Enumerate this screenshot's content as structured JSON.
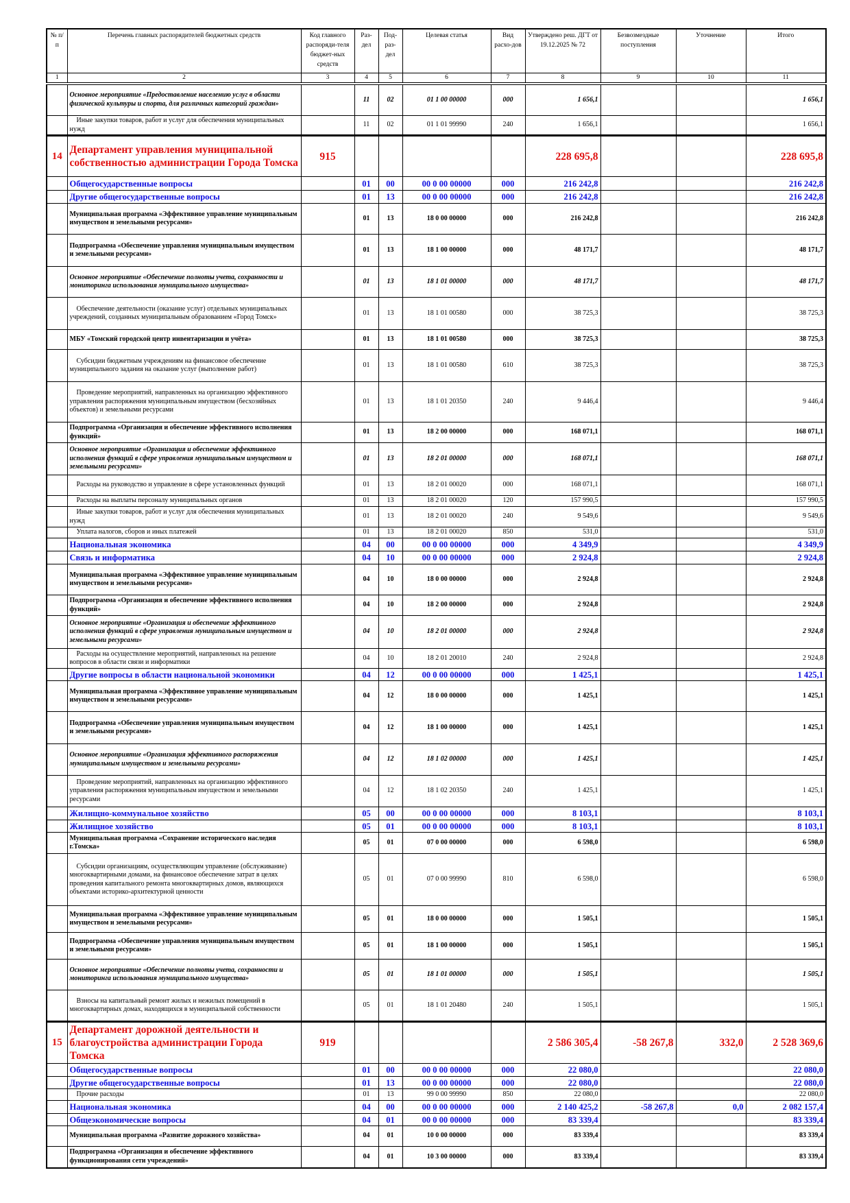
{
  "colors": {
    "department": "#e01010",
    "section": "#1010e0",
    "text": "#000000"
  },
  "header": {
    "num": "№ п/п",
    "name": "Перечень главных распорядителей бюджетных средств",
    "code": "Код главного распоряди-теля бюджет-ных средств",
    "rz": "Раз-дел",
    "prz": "Под-раз-дел",
    "cs": "Целевая статья",
    "vr": "Вид расхо-дов",
    "approved": "Утверждено реш. ДГТ от 19.12.2025 № 72",
    "free": "Безвозмездные поступления",
    "clarif": "Уточнение",
    "total": "Итого"
  },
  "column_numbers": [
    "1",
    "2",
    "3",
    "4",
    "5",
    "6",
    "7",
    "8",
    "9",
    "10",
    "11"
  ],
  "rows": [
    {
      "style": "om",
      "num": "",
      "name": "Основное мероприятие  «Предоставление населению услуг в области физической культуры и спорта, для различных категорий граждан»",
      "code": "",
      "rz": "11",
      "prz": "02",
      "cs": "01 1 00 00000",
      "vr": "000",
      "approved": "1 656,1",
      "free": "",
      "clarif": "",
      "total": "1 656,1"
    },
    {
      "style": "plain",
      "num": "",
      "name": "Иные закупки товаров, работ и услуг для обеспечения муниципальных нужд",
      "code": "",
      "rz": "11",
      "prz": "02",
      "cs": "01 1 01 99990",
      "vr": "240",
      "approved": "1 656,1",
      "free": "",
      "clarif": "",
      "total": "1 656,1"
    },
    {
      "style": "dept",
      "num": "14",
      "name": "Департамент управления муниципальной собственностью администрации Города Томска",
      "code": "915",
      "rz": "",
      "prz": "",
      "cs": "",
      "vr": "",
      "approved": "228 695,8",
      "free": "",
      "clarif": "",
      "total": "228 695,8"
    },
    {
      "style": "sec",
      "num": "",
      "name": "Общегосударственные вопросы",
      "code": "",
      "rz": "01",
      "prz": "00",
      "cs": "00 0 00 00000",
      "vr": "000",
      "approved": "216 242,8",
      "free": "",
      "clarif": "",
      "total": "216 242,8"
    },
    {
      "style": "sec",
      "num": "",
      "name": "Другие общегосударственные вопросы",
      "code": "",
      "rz": "01",
      "prz": "13",
      "cs": "00 0 00 00000",
      "vr": "000",
      "approved": "216 242,8",
      "free": "",
      "clarif": "",
      "total": "216 242,8"
    },
    {
      "style": "bold",
      "num": "",
      "name": "Муниципальная программа «Эффективное управление муниципальным имуществом и земельными ресурсами»",
      "code": "",
      "rz": "01",
      "prz": "13",
      "cs": "18 0 00 00000",
      "vr": "000",
      "approved": "216 242,8",
      "free": "",
      "clarif": "",
      "total": "216 242,8"
    },
    {
      "style": "bold",
      "num": "",
      "name": "Подпрограмма «Обеспечение управления муниципальным имуществом и земельными ресурсами»",
      "code": "",
      "rz": "01",
      "prz": "13",
      "cs": "18 1 00 00000",
      "vr": "000",
      "approved": "48 171,7",
      "free": "",
      "clarif": "",
      "total": "48 171,7"
    },
    {
      "style": "om",
      "num": "",
      "name": "Основное мероприятие «Обеспечение полноты учета, сохранности и мониторинга использования муниципального имущества»",
      "code": "",
      "rz": "01",
      "prz": "13",
      "cs": "18 1 01 00000",
      "vr": "000",
      "approved": "48 171,7",
      "free": "",
      "clarif": "",
      "total": "48 171,7"
    },
    {
      "style": "plain",
      "num": "",
      "name": "Обеспечение деятельности (оказание услуг) отдельных муниципальных учреждений, созданных муниципальным образованием «Город Томск»",
      "code": "",
      "rz": "01",
      "prz": "13",
      "cs": "18 1 01 00580",
      "vr": "000",
      "approved": "38 725,3",
      "free": "",
      "clarif": "",
      "total": "38 725,3"
    },
    {
      "style": "bold",
      "num": "",
      "name": "МБУ «Томский городской центр инвентаризации и учёта»",
      "code": "",
      "rz": "01",
      "prz": "13",
      "cs": "18 1 01 00580",
      "vr": "000",
      "approved": "38 725,3",
      "free": "",
      "clarif": "",
      "total": "38 725,3"
    },
    {
      "style": "plain",
      "num": "",
      "name": "Субсидии бюджетным учреждениям на финансовое обеспечение муниципального задания на оказание услуг (выполнение работ)",
      "code": "",
      "rz": "01",
      "prz": "13",
      "cs": "18 1 01 00580",
      "vr": "610",
      "approved": "38 725,3",
      "free": "",
      "clarif": "",
      "total": "38 725,3"
    },
    {
      "style": "plain",
      "num": "",
      "name": "Проведение мероприятий, направленных на организацию эффективного управления распоряжения муниципальным имуществом (бесхозяйных объектов) и земельными ресурсами",
      "code": "",
      "rz": "01",
      "prz": "13",
      "cs": "18 1 01 20350",
      "vr": "240",
      "approved": "9 446,4",
      "free": "",
      "clarif": "",
      "total": "9 446,4"
    },
    {
      "style": "bold",
      "num": "",
      "name": "Подпрограмма «Организация и обеспечение эффективного исполнения функций»",
      "code": "",
      "rz": "01",
      "prz": "13",
      "cs": "18 2 00 00000",
      "vr": "000",
      "approved": "168 071,1",
      "free": "",
      "clarif": "",
      "total": "168 071,1"
    },
    {
      "style": "om",
      "num": "",
      "name": "Основное мероприятие «Организация и обеспечение эффективного исполнения функций в сфере управления муниципальным имуществом и земельными ресурсами»",
      "code": "",
      "rz": "01",
      "prz": "13",
      "cs": "18 2 01 00000",
      "vr": "000",
      "approved": "168 071,1",
      "free": "",
      "clarif": "",
      "total": "168 071,1"
    },
    {
      "style": "plain",
      "num": "",
      "name": "Расходы на руководство и управление в сфере установленных функций",
      "code": "",
      "rz": "01",
      "prz": "13",
      "cs": "18 2 01 00020",
      "vr": "000",
      "approved": "168 071,1",
      "free": "",
      "clarif": "",
      "total": "168 071,1"
    },
    {
      "style": "plain",
      "num": "",
      "name": "Расходы на выплаты персоналу муниципальных органов",
      "code": "",
      "rz": "01",
      "prz": "13",
      "cs": "18 2 01 00020",
      "vr": "120",
      "approved": "157 990,5",
      "free": "",
      "clarif": "",
      "total": "157 990,5"
    },
    {
      "style": "plain",
      "num": "",
      "name": "Иные закупки товаров, работ и услуг для обеспечения муниципальных нужд",
      "code": "",
      "rz": "01",
      "prz": "13",
      "cs": "18 2 01 00020",
      "vr": "240",
      "approved": "9 549,6",
      "free": "",
      "clarif": "",
      "total": "9 549,6"
    },
    {
      "style": "plain",
      "num": "",
      "name": "Уплата налогов, сборов и иных платежей",
      "code": "",
      "rz": "01",
      "prz": "13",
      "cs": "18 2 01 00020",
      "vr": "850",
      "approved": "531,0",
      "free": "",
      "clarif": "",
      "total": "531,0"
    },
    {
      "style": "sec",
      "num": "",
      "name": "Национальная экономика",
      "code": "",
      "rz": "04",
      "prz": "00",
      "cs": "00 0 00 00000",
      "vr": "000",
      "approved": "4 349,9",
      "free": "",
      "clarif": "",
      "total": "4 349,9"
    },
    {
      "style": "sec",
      "num": "",
      "name": "Связь и информатика",
      "code": "",
      "rz": "04",
      "prz": "10",
      "cs": "00 0 00 00000",
      "vr": "000",
      "approved": "2 924,8",
      "free": "",
      "clarif": "",
      "total": "2 924,8"
    },
    {
      "style": "bold",
      "num": "",
      "name": "Муниципальная программа «Эффективное управление муниципальным имуществом и земельными ресурсами»",
      "code": "",
      "rz": "04",
      "prz": "10",
      "cs": "18 0 00 00000",
      "vr": "000",
      "approved": "2 924,8",
      "free": "",
      "clarif": "",
      "total": "2 924,8"
    },
    {
      "style": "bold",
      "num": "",
      "name": "Подпрограмма «Организация и обеспечение эффективного исполнения функций»",
      "code": "",
      "rz": "04",
      "prz": "10",
      "cs": "18 2 00 00000",
      "vr": "000",
      "approved": "2 924,8",
      "free": "",
      "clarif": "",
      "total": "2 924,8"
    },
    {
      "style": "om",
      "num": "",
      "name": "Основное мероприятие «Организация и обеспечение эффективного исполнения функций в сфере управления муниципальным имуществом и земельными ресурсами»",
      "code": "",
      "rz": "04",
      "prz": "10",
      "cs": "18 2 01 00000",
      "vr": "000",
      "approved": "2 924,8",
      "free": "",
      "clarif": "",
      "total": "2 924,8"
    },
    {
      "style": "plain",
      "num": "",
      "name": "Расходы на осуществление мероприятий, направленных на решение вопросов в области связи и информатики",
      "code": "",
      "rz": "04",
      "prz": "10",
      "cs": "18 2 01 20010",
      "vr": "240",
      "approved": "2 924,8",
      "free": "",
      "clarif": "",
      "total": "2 924,8"
    },
    {
      "style": "sec",
      "num": "",
      "name": "Другие вопросы в области национальной экономики",
      "code": "",
      "rz": "04",
      "prz": "12",
      "cs": "00 0 00 00000",
      "vr": "000",
      "approved": "1 425,1",
      "free": "",
      "clarif": "",
      "total": "1 425,1"
    },
    {
      "style": "bold",
      "num": "",
      "name": "Муниципальная программа «Эффективное управление муниципальным имуществом и земельными ресурсами»",
      "code": "",
      "rz": "04",
      "prz": "12",
      "cs": "18 0 00 00000",
      "vr": "000",
      "approved": "1 425,1",
      "free": "",
      "clarif": "",
      "total": "1 425,1"
    },
    {
      "style": "bold",
      "num": "",
      "name": "Подпрограмма «Обеспечение управления муниципальным имуществом и земельными ресурсами»",
      "code": "",
      "rz": "04",
      "prz": "12",
      "cs": "18 1 00 00000",
      "vr": "000",
      "approved": "1 425,1",
      "free": "",
      "clarif": "",
      "total": "1 425,1"
    },
    {
      "style": "om",
      "num": "",
      "name": "Основное мероприятие «Организация эффективного распоряжения муниципальным имуществом и земельными ресурсами»",
      "code": "",
      "rz": "04",
      "prz": "12",
      "cs": "18 1 02 00000",
      "vr": "000",
      "approved": "1 425,1",
      "free": "",
      "clarif": "",
      "total": "1 425,1"
    },
    {
      "style": "plain",
      "num": "",
      "name": "Проведение мероприятий, направленных на организацию эффективного управления распоряжения муниципальным имуществом  и земельными ресурсами",
      "code": "",
      "rz": "04",
      "prz": "12",
      "cs": "18 1 02 20350",
      "vr": "240",
      "approved": "1 425,1",
      "free": "",
      "clarif": "",
      "total": "1 425,1"
    },
    {
      "style": "sec",
      "num": "",
      "name": "Жилищно-коммунальное хозяйство",
      "code": "",
      "rz": "05",
      "prz": "00",
      "cs": "00 0 00 00000",
      "vr": "000",
      "approved": "8 103,1",
      "free": "",
      "clarif": "",
      "total": "8 103,1"
    },
    {
      "style": "sec",
      "num": "",
      "name": "Жилищное хозяйство",
      "code": "",
      "rz": "05",
      "prz": "01",
      "cs": "00 0 00 00000",
      "vr": "000",
      "approved": "8 103,1",
      "free": "",
      "clarif": "",
      "total": "8 103,1"
    },
    {
      "style": "bold",
      "num": "",
      "name": "Муниципальная программа «Сохранение исторического наследия г.Томска»",
      "code": "",
      "rz": "05",
      "prz": "01",
      "cs": "07 0 00 00000",
      "vr": "000",
      "approved": "6 598,0",
      "free": "",
      "clarif": "",
      "total": "6 598,0"
    },
    {
      "style": "plain",
      "num": "",
      "name": "Субсидии организациям, осуществляющим управление (обслуживание) многоквартирными домами, на финансовое обеспечение затрат в целях проведения капитального ремонта многоквартирных домов, являющихся объектами историко-архитектурной ценности",
      "code": "",
      "rz": "05",
      "prz": "01",
      "cs": "07 0 00 99990",
      "vr": "810",
      "approved": "6 598,0",
      "free": "",
      "clarif": "",
      "total": "6 598,0"
    },
    {
      "style": "bold",
      "num": "",
      "name": "Муниципальная программа «Эффективное управление муниципальным имуществом и земельными ресурсами»",
      "code": "",
      "rz": "05",
      "prz": "01",
      "cs": "18 0 00 00000",
      "vr": "000",
      "approved": "1 505,1",
      "free": "",
      "clarif": "",
      "total": "1 505,1"
    },
    {
      "style": "bold",
      "num": "",
      "name": "Подпрограмма «Обеспечение управления муниципальным имуществом и земельными ресурсами»",
      "code": "",
      "rz": "05",
      "prz": "01",
      "cs": "18 1 00 00000",
      "vr": "000",
      "approved": "1 505,1",
      "free": "",
      "clarif": "",
      "total": "1 505,1"
    },
    {
      "style": "om",
      "num": "",
      "name": "Основное мероприятие «Обеспечение полноты учета, сохранности и мониторинга использования муниципального имущества»",
      "code": "",
      "rz": "05",
      "prz": "01",
      "cs": "18 1 01 00000",
      "vr": "000",
      "approved": "1 505,1",
      "free": "",
      "clarif": "",
      "total": "1 505,1"
    },
    {
      "style": "plain",
      "num": "",
      "name": "Взносы на капитальный ремонт жилых и нежилых помещений в многоквартирных домах, находящихся в муниципальной собственности",
      "code": "",
      "rz": "05",
      "prz": "01",
      "cs": "18 1 01 20480",
      "vr": "240",
      "approved": "1 505,1",
      "free": "",
      "clarif": "",
      "total": "1 505,1"
    },
    {
      "style": "dept",
      "num": "15",
      "name": "Департамент дорожной деятельности и благоустройства администрации Города Томска",
      "code": "919",
      "rz": "",
      "prz": "",
      "cs": "",
      "vr": "",
      "approved": "2 586 305,4",
      "free": "-58 267,8",
      "clarif": "332,0",
      "total": "2 528 369,6"
    },
    {
      "style": "sec",
      "num": "",
      "name": "Общегосударственные вопросы",
      "code": "",
      "rz": "01",
      "prz": "00",
      "cs": "00 0 00 00000",
      "vr": "000",
      "approved": "22 080,0",
      "free": "",
      "clarif": "",
      "total": "22 080,0"
    },
    {
      "style": "sec",
      "num": "",
      "name": "Другие общегосударственные вопросы",
      "code": "",
      "rz": "01",
      "prz": "13",
      "cs": "00 0 00 00000",
      "vr": "000",
      "approved": "22 080,0",
      "free": "",
      "clarif": "",
      "total": "22 080,0"
    },
    {
      "style": "plain",
      "num": "",
      "name": "Прочие расходы",
      "code": "",
      "rz": "01",
      "prz": "13",
      "cs": "99 0 00 99990",
      "vr": "850",
      "approved": "22 080,0",
      "free": "",
      "clarif": "",
      "total": "22 080,0"
    },
    {
      "style": "sec",
      "num": "",
      "name": "Национальная экономика",
      "code": "",
      "rz": "04",
      "prz": "00",
      "cs": "00 0 00 00000",
      "vr": "000",
      "approved": "2 140 425,2",
      "free": "-58 267,8",
      "clarif": "0,0",
      "total": "2 082 157,4"
    },
    {
      "style": "sec",
      "num": "",
      "name": "Общеэкономические вопросы",
      "code": "",
      "rz": "04",
      "prz": "01",
      "cs": "00 0 00 00000",
      "vr": "000",
      "approved": "83 339,4",
      "free": "",
      "clarif": "",
      "total": "83 339,4"
    },
    {
      "style": "bold",
      "num": "",
      "name": "Муниципальная программа «Развитие дорожного хозяйства»",
      "code": "",
      "rz": "04",
      "prz": "01",
      "cs": "10 0 00 00000",
      "vr": "000",
      "approved": "83 339,4",
      "free": "",
      "clarif": "",
      "total": "83 339,4"
    },
    {
      "style": "bold",
      "num": "",
      "name": "Подпрограмма «Организация и обеспечение эффективного функционирования сети учреждений»",
      "code": "",
      "rz": "04",
      "prz": "01",
      "cs": "10 3 00 00000",
      "vr": "000",
      "approved": "83 339,4",
      "free": "",
      "clarif": "",
      "total": "83 339,4"
    }
  ]
}
